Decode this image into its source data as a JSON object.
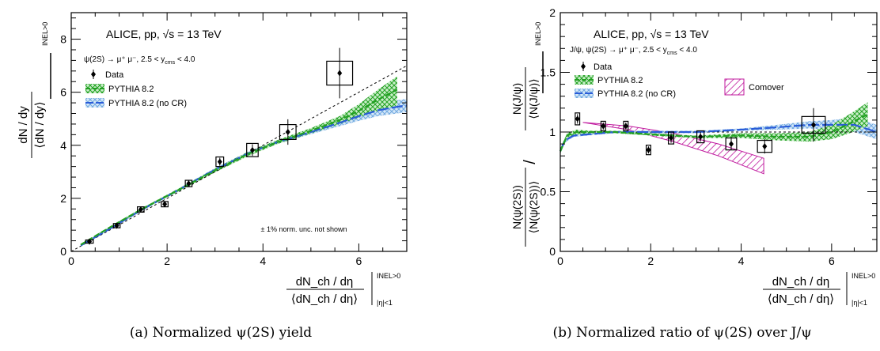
{
  "figure": {
    "captions": [
      "(a) Normalized ψ(2S) yield",
      "(b) Normalized ratio of ψ(2S) over J/ψ"
    ]
  },
  "chart_data": [
    {
      "type": "scatter",
      "panel": "a",
      "title_main": "ALICE, pp, √s = 13 TeV",
      "process": "ψ(2S) → μ⁺ μ⁻, 2.5 < y",
      "process_sub": "cms",
      "process_tail": "< 4.0",
      "ylabel_num": "dN / dy",
      "ylabel_den": "⟨dN / dy⟩",
      "ylabel_sup": "INEL>0",
      "xlabel_num": "dN_ch / dη",
      "xlabel_den": "⟨dN_ch / dη⟩",
      "xlabel_sup": "INEL>0",
      "xlabel_sub": "|η|<1",
      "note": "± 1% norm. unc. not shown",
      "xlim": [
        0,
        7
      ],
      "ylim": [
        0,
        9
      ],
      "xticks": [
        0,
        2,
        4,
        6
      ],
      "yticks": [
        0,
        2,
        4,
        6,
        8
      ],
      "legend": {
        "data": "Data",
        "pythia": "PYTHIA 8.2",
        "pythia_nocr": "PYTHIA 8.2 (no CR)"
      },
      "data_points": [
        {
          "x": 0.38,
          "y": 0.37,
          "yerr": 0.06,
          "sx": 0.08,
          "sy": 0.06
        },
        {
          "x": 0.95,
          "y": 0.97,
          "yerr": 0.06,
          "sx": 0.07,
          "sy": 0.08
        },
        {
          "x": 1.45,
          "y": 1.58,
          "yerr": 0.08,
          "sx": 0.07,
          "sy": 0.1
        },
        {
          "x": 1.95,
          "y": 1.78,
          "yerr": 0.1,
          "sx": 0.07,
          "sy": 0.1
        },
        {
          "x": 2.45,
          "y": 2.56,
          "yerr": 0.1,
          "sx": 0.07,
          "sy": 0.12
        },
        {
          "x": 3.1,
          "y": 3.38,
          "yerr": 0.15,
          "sx": 0.08,
          "sy": 0.18
        },
        {
          "x": 3.78,
          "y": 3.82,
          "yerr": 0.22,
          "sx": 0.12,
          "sy": 0.25
        },
        {
          "x": 4.52,
          "y": 4.5,
          "yerr": 0.48,
          "sx": 0.17,
          "sy": 0.28
        },
        {
          "x": 5.6,
          "y": 6.72,
          "yerr": 0.95,
          "sx": 0.27,
          "sy": 0.45
        }
      ],
      "reference_line": {
        "x": [
          0,
          7
        ],
        "y": [
          0,
          7
        ]
      },
      "pythia": {
        "x": [
          0.2,
          0.8,
          1.5,
          2.2,
          3.0,
          3.7,
          4.3,
          5.0,
          5.6,
          6.0,
          6.4,
          6.8
        ],
        "y": [
          0.25,
          0.9,
          1.62,
          2.28,
          3.05,
          3.68,
          4.12,
          4.55,
          4.95,
          5.3,
          5.72,
          6.1
        ],
        "lo": [
          0.23,
          0.87,
          1.58,
          2.23,
          2.98,
          3.6,
          4.05,
          4.45,
          4.8,
          5.05,
          5.3,
          5.5
        ],
        "hi": [
          0.27,
          0.93,
          1.66,
          2.33,
          3.12,
          3.76,
          4.2,
          4.65,
          5.1,
          5.55,
          6.1,
          6.6
        ]
      },
      "pythia_nocr": {
        "x": [
          0.2,
          0.8,
          1.5,
          2.2,
          3.0,
          3.7,
          4.3,
          5.0,
          5.6,
          6.0,
          6.4,
          6.8,
          7.0
        ],
        "y": [
          0.22,
          0.85,
          1.6,
          2.28,
          3.08,
          3.7,
          4.12,
          4.5,
          4.85,
          5.1,
          5.32,
          5.45,
          5.5
        ],
        "lo": [
          0.2,
          0.82,
          1.56,
          2.23,
          3.02,
          3.63,
          4.05,
          4.42,
          4.72,
          4.92,
          5.1,
          5.2,
          5.25
        ],
        "hi": [
          0.24,
          0.88,
          1.64,
          2.33,
          3.14,
          3.77,
          4.19,
          4.58,
          4.98,
          5.28,
          5.54,
          5.7,
          5.75
        ]
      },
      "colors": {
        "pythia": "#22a022",
        "pythia_nocr": "#2a5cd8",
        "nocr_fill": "#6fa8e0"
      }
    },
    {
      "type": "scatter",
      "panel": "b",
      "title_main": "ALICE, pp, √s = 13 TeV",
      "process": "J/ψ, ψ(2S) → μ⁺ μ⁻, 2.5 < y",
      "process_sub": "cms",
      "process_tail": "< 4.0",
      "ylabel_left_num": "N(ψ(2S))",
      "ylabel_left_den": "⟨N(ψ(2S))⟩",
      "ylabel_right_num": "N(J/ψ)",
      "ylabel_right_den": "⟨N(J/ψ)⟩",
      "ylabel_sup": "INEL>0",
      "xlabel_num": "dN_ch / dη",
      "xlabel_den": "⟨dN_ch / dη⟩",
      "xlabel_sup": "INEL>0",
      "xlabel_sub": "|η|<1",
      "xlim": [
        0,
        7
      ],
      "ylim": [
        0,
        2
      ],
      "xticks": [
        0,
        2,
        4,
        6
      ],
      "yticks": [
        0,
        0.5,
        1,
        1.5,
        2
      ],
      "ytick_labels": [
        "0",
        "0.5",
        "1",
        "1.5",
        "2"
      ],
      "legend": {
        "data": "Data",
        "pythia": "PYTHIA 8.2",
        "pythia_nocr": "PYTHIA 8.2 (no CR)",
        "comover": "Comover"
      },
      "data_points": [
        {
          "x": 0.38,
          "y": 1.11,
          "yerr": 0.04,
          "sx": 0.05,
          "sy": 0.05
        },
        {
          "x": 0.95,
          "y": 1.05,
          "yerr": 0.03,
          "sx": 0.05,
          "sy": 0.04
        },
        {
          "x": 1.45,
          "y": 1.05,
          "yerr": 0.03,
          "sx": 0.05,
          "sy": 0.04
        },
        {
          "x": 1.95,
          "y": 0.85,
          "yerr": 0.03,
          "sx": 0.05,
          "sy": 0.04
        },
        {
          "x": 2.45,
          "y": 0.95,
          "yerr": 0.04,
          "sx": 0.06,
          "sy": 0.05
        },
        {
          "x": 3.1,
          "y": 0.96,
          "yerr": 0.04,
          "sx": 0.08,
          "sy": 0.05
        },
        {
          "x": 3.78,
          "y": 0.9,
          "yerr": 0.05,
          "sx": 0.12,
          "sy": 0.05
        },
        {
          "x": 4.52,
          "y": 0.88,
          "yerr": 0.06,
          "sx": 0.16,
          "sy": 0.05
        },
        {
          "x": 5.6,
          "y": 1.06,
          "yerr": 0.14,
          "sx": 0.26,
          "sy": 0.07
        }
      ],
      "reference_line": {
        "x": [
          0,
          7
        ],
        "y": [
          1,
          1
        ]
      },
      "comover": {
        "x": [
          0.5,
          1.5,
          2.5,
          3.5,
          4.5
        ],
        "hi": [
          1.08,
          1.05,
          0.99,
          0.9,
          0.78
        ],
        "lo": [
          1.08,
          1.02,
          0.92,
          0.8,
          0.65
        ]
      },
      "pythia": {
        "x": [
          0.0,
          0.15,
          0.35,
          0.7,
          1.2,
          2.0,
          3.0,
          4.0,
          4.8,
          5.5,
          6.0,
          6.4,
          6.8
        ],
        "y": [
          0.84,
          0.97,
          1.0,
          1.0,
          1.0,
          0.98,
          0.96,
          0.97,
          0.96,
          0.96,
          1.0,
          1.07,
          1.15
        ],
        "lo": [
          0.82,
          0.95,
          0.98,
          0.99,
          0.99,
          0.97,
          0.95,
          0.95,
          0.93,
          0.92,
          0.94,
          0.99,
          1.05
        ],
        "hi": [
          0.86,
          0.99,
          1.02,
          1.01,
          1.01,
          0.99,
          0.97,
          0.99,
          0.99,
          1.0,
          1.06,
          1.15,
          1.25
        ]
      },
      "pythia_nocr": {
        "x": [
          0.0,
          0.1,
          0.3,
          0.6,
          1.2,
          2.0,
          3.0,
          4.0,
          4.8,
          5.5,
          6.0,
          6.5,
          7.0
        ],
        "y": [
          0.84,
          0.93,
          0.97,
          0.98,
          1.0,
          1.0,
          1.0,
          1.02,
          1.04,
          1.06,
          1.06,
          1.06,
          1.0
        ],
        "lo": [
          0.82,
          0.91,
          0.96,
          0.97,
          0.99,
          0.99,
          0.99,
          1.01,
          1.02,
          1.03,
          1.02,
          1.0,
          0.94
        ],
        "hi": [
          0.86,
          0.95,
          0.98,
          0.99,
          1.01,
          1.01,
          1.01,
          1.03,
          1.06,
          1.09,
          1.1,
          1.12,
          1.06
        ]
      },
      "colors": {
        "pythia": "#22a022",
        "pythia_nocr": "#2a5cd8",
        "nocr_fill": "#6fa8e0",
        "comover": "#c0199e"
      }
    }
  ]
}
